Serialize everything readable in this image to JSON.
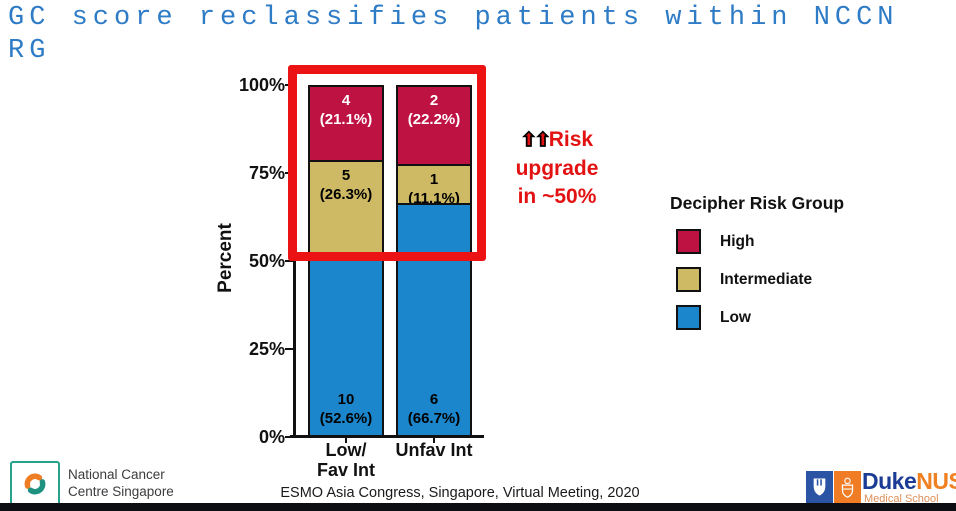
{
  "slide": {
    "title_line1": "GC score reclassifies patients within NCCN",
    "title_line2": "RG",
    "title_color": "#2E7BC6"
  },
  "chart_data": {
    "type": "bar",
    "stacked": true,
    "title": "",
    "xlabel": "",
    "ylabel": "Percent",
    "ylim": [
      0,
      100
    ],
    "grid": false,
    "yticks": [
      "0%",
      "25%",
      "50%",
      "75%",
      "100%"
    ],
    "categories": [
      "Low/\nFav Int",
      "Unfav Int"
    ],
    "series": [
      {
        "name": "Low",
        "color": "#1C86CC",
        "label_color": "#000000",
        "label_pos": "bottom",
        "counts": [
          10,
          6
        ],
        "percents": [
          52.6,
          66.7
        ]
      },
      {
        "name": "Intermediate",
        "color": "#CEBA64",
        "label_color": "#000000",
        "label_pos": "top",
        "counts": [
          5,
          1
        ],
        "percents": [
          26.3,
          11.1
        ]
      },
      {
        "name": "High",
        "color": "#BE1243",
        "label_color": "#FFFFFF",
        "label_pos": "top",
        "counts": [
          4,
          2
        ],
        "percents": [
          21.1,
          22.2
        ]
      }
    ],
    "legend_title": "Decipher Risk Group",
    "legend_order": [
      "High",
      "Intermediate",
      "Low"
    ],
    "legend_position": "right",
    "bar_label_format": "count\n(percent%)"
  },
  "annotation": {
    "arrow_icon": "⬆",
    "lines": [
      "Risk",
      "upgrade",
      "in ~50%"
    ],
    "color": "#E31212"
  },
  "highlight_box_color": "#EB1313",
  "footer": {
    "caption": "ESMO Asia Congress, Singapore, Virtual Meeting, 2020"
  },
  "logos": {
    "nccs_line1": "National Cancer",
    "nccs_line2": "Centre Singapore",
    "duke_text": "Duke",
    "nus_text": "NUS",
    "dukenus_subtitle": "Medical School"
  }
}
